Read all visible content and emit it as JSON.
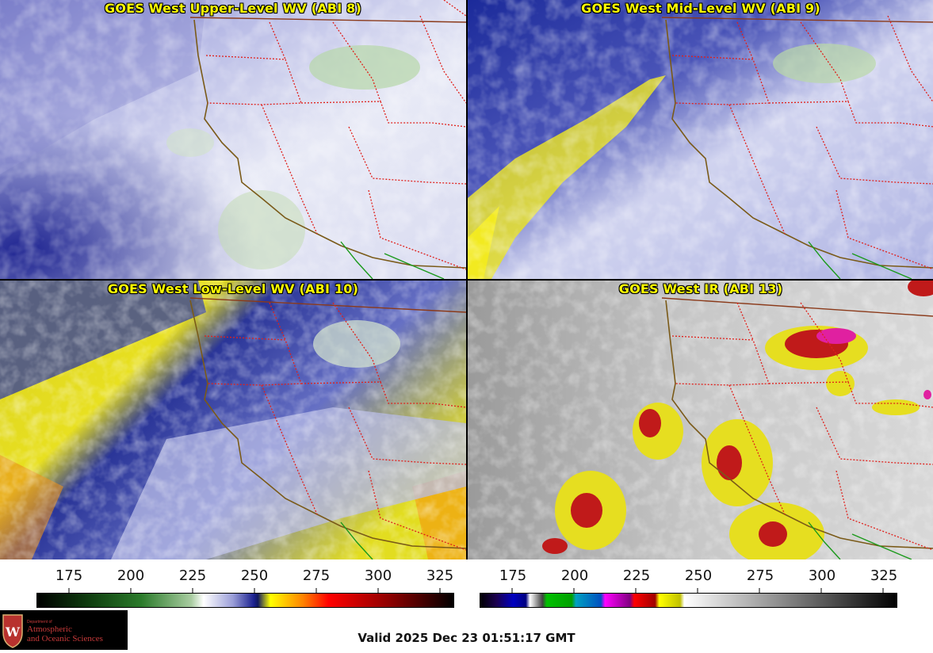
{
  "panels": [
    {
      "title": "GOES West Upper-Level WV (ABI 8)"
    },
    {
      "title": "GOES West Mid-Level WV (ABI 9)"
    },
    {
      "title": "GOES West Low-Level WV (ABI 10)"
    },
    {
      "title": "GOES West IR (ABI 13)"
    }
  ],
  "colorbars": [
    {
      "name": "wv-colorbar",
      "ticks": [
        "175",
        "200",
        "225",
        "250",
        "275",
        "300",
        "325"
      ]
    },
    {
      "name": "ir-colorbar",
      "ticks": [
        "175",
        "200",
        "225",
        "250",
        "275",
        "300",
        "325"
      ]
    }
  ],
  "valid_time": "Valid 2025 Dec 23 01:51:17 GMT",
  "logo": {
    "line1": "Department of",
    "line2": "Atmospheric",
    "line3": "and Oceanic Sciences",
    "icon": "uw-crest-icon"
  },
  "colors": {
    "state_border": "#e0201b",
    "coast": "#7a5a18",
    "mexico_border": "#1a9a1a",
    "title": "#ffff00"
  }
}
